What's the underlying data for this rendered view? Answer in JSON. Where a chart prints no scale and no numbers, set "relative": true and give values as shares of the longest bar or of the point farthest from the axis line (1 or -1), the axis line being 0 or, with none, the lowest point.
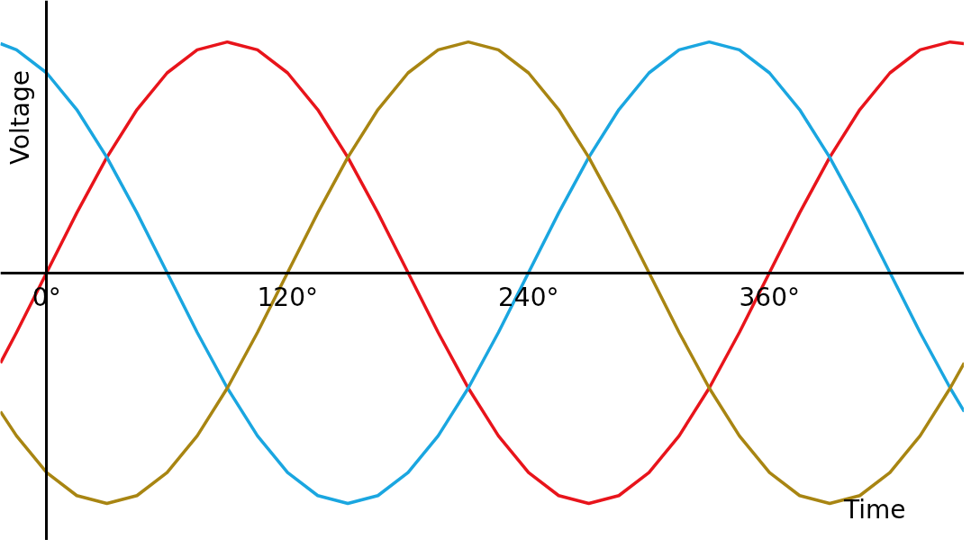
{
  "chart_data": {
    "type": "line",
    "relative": true,
    "xlabel": "Time",
    "ylabel": "Voltage",
    "x": [
      -23,
      -15,
      0,
      15,
      30,
      45,
      60,
      75,
      90,
      105,
      120,
      135,
      150,
      165,
      180,
      195,
      210,
      225,
      240,
      255,
      270,
      285,
      300,
      315,
      330,
      345,
      360,
      375,
      390,
      405,
      420,
      435,
      450,
      457
    ],
    "xlim": [
      -23,
      457
    ],
    "xticks": [
      {
        "value": 0,
        "label": "0°"
      },
      {
        "value": 120,
        "label": "120°"
      },
      {
        "value": 240,
        "label": "240°"
      },
      {
        "value": 360,
        "label": "360°"
      }
    ],
    "tick_labels": "x",
    "marker": "none",
    "line_style": "solid",
    "series": [
      {
        "color": "#e8141b",
        "values": [
          -0.391,
          -0.259,
          0,
          0.259,
          0.5,
          0.707,
          0.866,
          0.966,
          1,
          0.966,
          0.866,
          0.707,
          0.5,
          0.259,
          0,
          -0.259,
          -0.5,
          -0.707,
          -0.866,
          -0.966,
          -1,
          -0.966,
          -0.866,
          -0.707,
          -0.5,
          -0.259,
          0,
          0.259,
          0.5,
          0.707,
          0.866,
          0.966,
          1,
          0.993
        ]
      },
      {
        "color": "#1aa6e0",
        "values": [
          0.993,
          0.966,
          0.866,
          0.707,
          0.5,
          0.259,
          0,
          -0.259,
          -0.5,
          -0.707,
          -0.866,
          -0.966,
          -1,
          -0.966,
          -0.866,
          -0.707,
          -0.5,
          -0.259,
          0,
          0.259,
          0.5,
          0.707,
          0.866,
          0.966,
          1,
          0.966,
          0.866,
          0.707,
          0.5,
          0.259,
          0,
          -0.259,
          -0.5,
          -0.602
        ]
      },
      {
        "color": "#a88512",
        "values": [
          -0.602,
          -0.707,
          -0.866,
          -0.966,
          -1,
          -0.966,
          -0.866,
          -0.707,
          -0.5,
          -0.259,
          0,
          0.259,
          0.5,
          0.707,
          0.866,
          0.966,
          1,
          0.966,
          0.866,
          0.707,
          0.5,
          0.259,
          0,
          -0.259,
          -0.5,
          -0.707,
          -0.866,
          -0.966,
          -1,
          -0.966,
          -0.866,
          -0.707,
          -0.5,
          -0.391
        ]
      }
    ]
  }
}
